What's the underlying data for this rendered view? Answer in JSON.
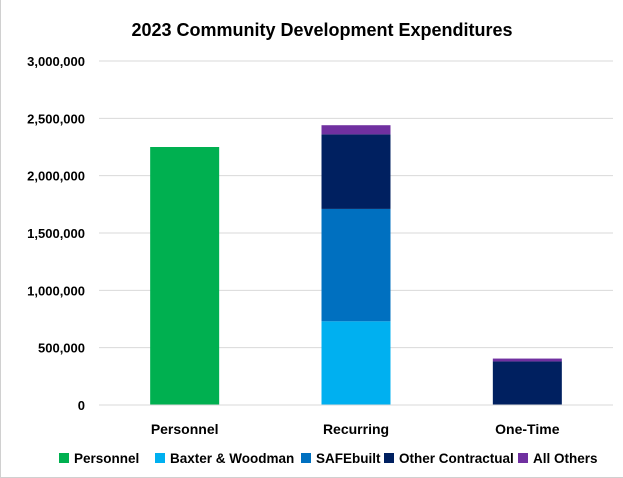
{
  "chart_data": {
    "type": "bar",
    "stacked": true,
    "title": "2023 Community Development Expenditures",
    "xlabel": "",
    "ylabel": "",
    "ylim": [
      0,
      3000000
    ],
    "yticks": [
      0,
      500000,
      1000000,
      1500000,
      2000000,
      2500000,
      3000000
    ],
    "ytick_labels": [
      "0",
      "500,000",
      "1,000,000",
      "1,500,000",
      "2,000,000",
      "2,500,000",
      "3,000,000"
    ],
    "categories": [
      "Personnel",
      "Recurring",
      "One-Time"
    ],
    "series": [
      {
        "name": "Personnel",
        "color": "#00B050",
        "values": [
          2250000,
          0,
          0
        ]
      },
      {
        "name": "Baxter & Woodman",
        "color": "#00B0F0",
        "values": [
          0,
          730000,
          0
        ]
      },
      {
        "name": "SAFEbuilt",
        "color": "#0070C0",
        "values": [
          0,
          980000,
          0
        ]
      },
      {
        "name": "Other Contractual",
        "color": "#002060",
        "values": [
          0,
          650000,
          380000
        ]
      },
      {
        "name": "All Others",
        "color": "#7030A0",
        "values": [
          0,
          80000,
          25000
        ]
      }
    ],
    "grid": "horizontal",
    "legend_position": "bottom"
  }
}
